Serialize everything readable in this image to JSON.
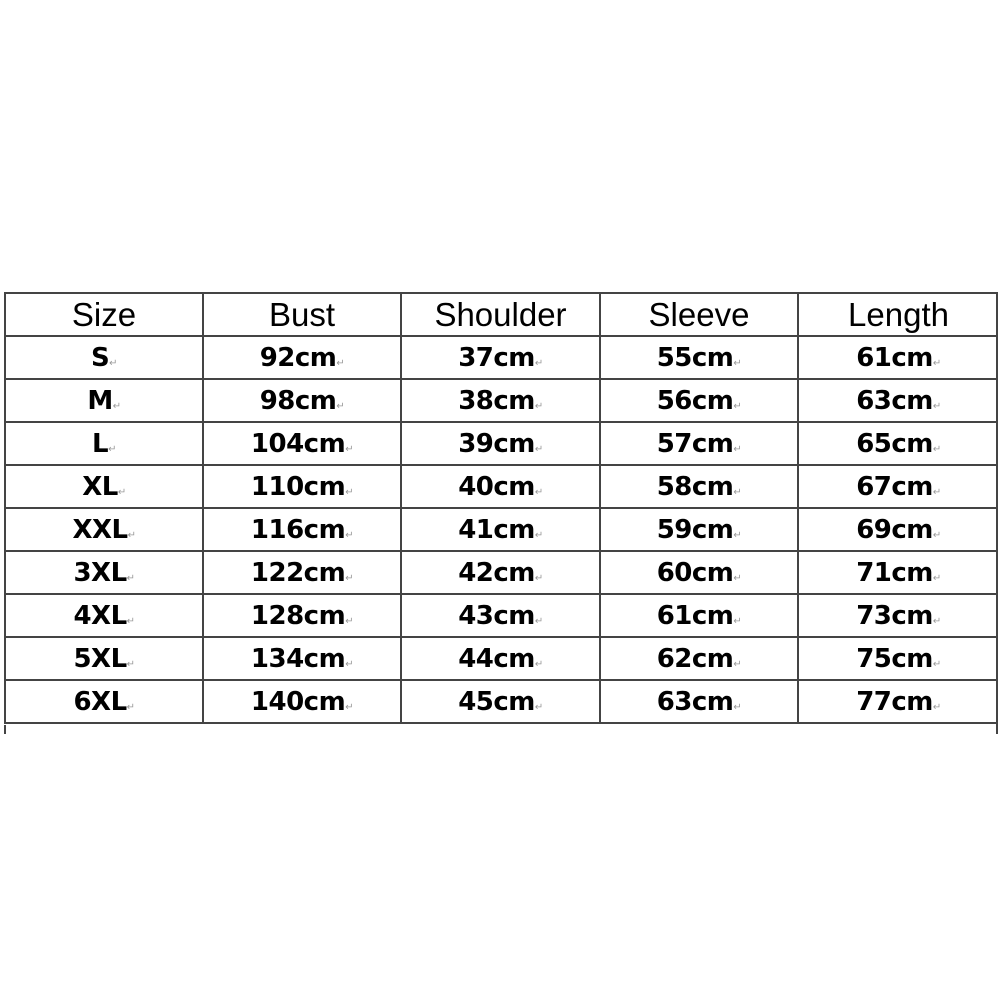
{
  "table": {
    "headers": [
      "Size",
      "Bust",
      "Shoulder",
      "Sleeve",
      "Length"
    ],
    "rows": [
      [
        "S",
        "92cm",
        "37cm",
        "55cm",
        "61cm"
      ],
      [
        "M",
        "98cm",
        "38cm",
        "56cm",
        "63cm"
      ],
      [
        "L",
        "104cm",
        "39cm",
        "57cm",
        "65cm"
      ],
      [
        "XL",
        "110cm",
        "40cm",
        "58cm",
        "67cm"
      ],
      [
        "XXL",
        "116cm",
        "41cm",
        "59cm",
        "69cm"
      ],
      [
        "3XL",
        "122cm",
        "42cm",
        "60cm",
        "71cm"
      ],
      [
        "4XL",
        "128cm",
        "43cm",
        "61cm",
        "73cm"
      ],
      [
        "5XL",
        "134cm",
        "44cm",
        "62cm",
        "75cm"
      ],
      [
        "6XL",
        "140cm",
        "45cm",
        "63cm",
        "77cm"
      ]
    ]
  }
}
